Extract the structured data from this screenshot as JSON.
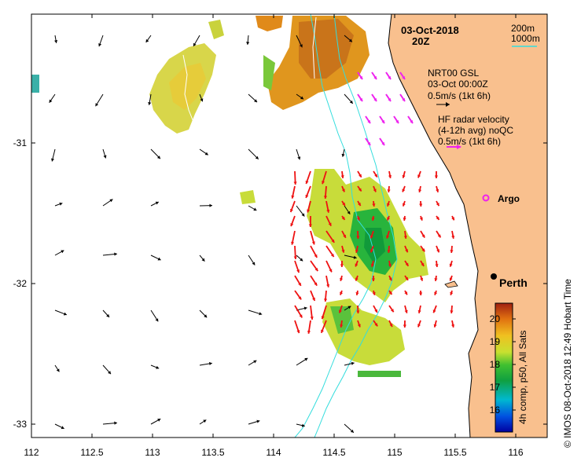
{
  "map": {
    "date": "03-Oct-2018",
    "time": "20Z",
    "depth_legend": [
      "200m",
      "1000m"
    ],
    "gsl": {
      "title": "NRT00 GSL",
      "date": "03-Oct 00:00Z",
      "scale": "0.5m/s (1kt 6h)"
    },
    "hf": {
      "title": "HF radar velocity",
      "avg": "(4-12h avg) noQC",
      "scale": "0.5m/s (1kt 6h)"
    },
    "argo_label": "Argo",
    "city_label": "Perth",
    "x_ticks": [
      "112",
      "112.5",
      "113",
      "113.5",
      "114",
      "114.5",
      "115",
      "115.5",
      "116"
    ],
    "y_ticks": [
      "-31",
      "-32",
      "-33"
    ],
    "colorbar": {
      "ticks": [
        "20",
        "19",
        "18",
        "17",
        "16"
      ],
      "label": "4h comp, p50, All Sats"
    },
    "credit": "© IMOS 08-Oct-2018 12:49 Hobart Time"
  },
  "colors": {
    "land": "#f9c08e",
    "isobath": "#33dddd",
    "gsl_arrow": "#000000",
    "hf_arrow": "#ee1111",
    "hf_legend_arrow": "#ee22ee",
    "argo": "#ee22ee"
  }
}
